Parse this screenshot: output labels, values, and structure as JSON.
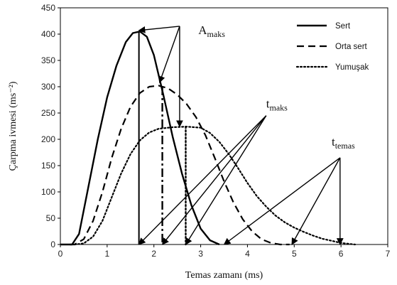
{
  "chart_data": {
    "type": "line",
    "xlabel": "Temas zamanı (ms)",
    "ylabel": "Çarpma ivmesi (ms⁻²)",
    "xlim": [
      0,
      7
    ],
    "ylim": [
      0,
      450
    ],
    "xticks": [
      0,
      1,
      2,
      3,
      4,
      5,
      6,
      7
    ],
    "yticks": [
      0,
      50,
      100,
      150,
      200,
      250,
      300,
      350,
      400,
      450
    ],
    "legend_position": "top-right",
    "series": [
      {
        "name": "Sert",
        "style": "solid",
        "color": "#000000",
        "points": [
          [
            0,
            0
          ],
          [
            0.25,
            0
          ],
          [
            0.4,
            20
          ],
          [
            0.6,
            110
          ],
          [
            0.8,
            200
          ],
          [
            1.0,
            280
          ],
          [
            1.2,
            340
          ],
          [
            1.4,
            385
          ],
          [
            1.55,
            402
          ],
          [
            1.7,
            405
          ],
          [
            1.85,
            395
          ],
          [
            2.0,
            360
          ],
          [
            2.2,
            285
          ],
          [
            2.4,
            205
          ],
          [
            2.6,
            135
          ],
          [
            2.8,
            75
          ],
          [
            3.0,
            30
          ],
          [
            3.2,
            8
          ],
          [
            3.4,
            0
          ]
        ]
      },
      {
        "name": "Orta sert",
        "style": "dashed",
        "color": "#000000",
        "points": [
          [
            0.2,
            0
          ],
          [
            0.3,
            0
          ],
          [
            0.5,
            10
          ],
          [
            0.7,
            45
          ],
          [
            0.9,
            100
          ],
          [
            1.1,
            165
          ],
          [
            1.3,
            220
          ],
          [
            1.5,
            262
          ],
          [
            1.7,
            288
          ],
          [
            1.9,
            300
          ],
          [
            2.1,
            302
          ],
          [
            2.3,
            297
          ],
          [
            2.5,
            285
          ],
          [
            2.7,
            267
          ],
          [
            2.9,
            242
          ],
          [
            3.1,
            208
          ],
          [
            3.3,
            165
          ],
          [
            3.5,
            120
          ],
          [
            3.7,
            80
          ],
          [
            3.9,
            48
          ],
          [
            4.1,
            25
          ],
          [
            4.3,
            10
          ],
          [
            4.5,
            3
          ],
          [
            4.7,
            0
          ],
          [
            4.9,
            0
          ]
        ]
      },
      {
        "name": "Yumuşak",
        "style": "dotted",
        "color": "#000000",
        "points": [
          [
            0.3,
            0
          ],
          [
            0.5,
            2
          ],
          [
            0.7,
            15
          ],
          [
            0.9,
            45
          ],
          [
            1.1,
            90
          ],
          [
            1.3,
            135
          ],
          [
            1.5,
            172
          ],
          [
            1.7,
            198
          ],
          [
            1.9,
            213
          ],
          [
            2.1,
            220
          ],
          [
            2.4,
            223
          ],
          [
            2.7,
            224
          ],
          [
            3.0,
            222
          ],
          [
            3.2,
            212
          ],
          [
            3.4,
            195
          ],
          [
            3.6,
            172
          ],
          [
            3.8,
            145
          ],
          [
            4.0,
            117
          ],
          [
            4.2,
            92
          ],
          [
            4.4,
            72
          ],
          [
            4.6,
            55
          ],
          [
            4.8,
            42
          ],
          [
            5.0,
            32
          ],
          [
            5.2,
            24
          ],
          [
            5.4,
            17
          ],
          [
            5.6,
            11
          ],
          [
            5.8,
            7
          ],
          [
            6.0,
            3
          ],
          [
            6.2,
            1
          ],
          [
            6.3,
            0
          ]
        ]
      }
    ],
    "verticals": [
      {
        "x": 1.68,
        "y_top": 405,
        "style": "solid"
      },
      {
        "x": 2.18,
        "y_top": 300,
        "style": "dashdot"
      },
      {
        "x": 2.68,
        "y_top": 224,
        "style": "dotted"
      }
    ],
    "annotations": [
      {
        "label": "A",
        "sub": "maks",
        "label_pos": [
          2.95,
          400
        ],
        "origin": [
          2.55,
          415
        ],
        "targets": [
          [
            1.68,
            407
          ],
          [
            2.12,
            308
          ],
          [
            2.55,
            224
          ]
        ]
      },
      {
        "label": "t",
        "sub": "maks",
        "label_pos": [
          4.4,
          260
        ],
        "origin": [
          4.4,
          245
        ],
        "targets": [
          [
            1.68,
            0
          ],
          [
            2.18,
            0
          ],
          [
            2.68,
            0
          ]
        ]
      },
      {
        "label": "t",
        "sub": "temas",
        "label_pos": [
          5.8,
          188
        ],
        "origin": [
          5.98,
          165
        ],
        "targets": [
          [
            3.5,
            0
          ],
          [
            4.95,
            0
          ],
          [
            5.98,
            0
          ]
        ]
      }
    ]
  }
}
